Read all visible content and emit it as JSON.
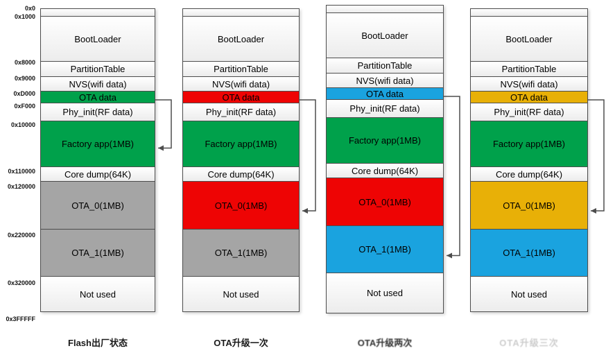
{
  "diagram": {
    "addresses": [
      "0x0",
      "0x1000",
      "0x8000",
      "0x9000",
      "0xD000",
      "0xF000",
      "0x10000",
      "0x110000",
      "0x120000",
      "0x220000",
      "0x320000",
      "0x3FFFFF"
    ],
    "segments": [
      {
        "label": ""
      },
      {
        "label": "BootLoader"
      },
      {
        "label": "PartitionTable"
      },
      {
        "label": "NVS(wifi data)"
      },
      {
        "label": "OTA data"
      },
      {
        "label": "Phy_init(RF data)"
      },
      {
        "label": "Factory app(1MB)"
      },
      {
        "label": "Core dump(64K)"
      },
      {
        "label": "OTA_0(1MB)"
      },
      {
        "label": "OTA_1(1MB)"
      },
      {
        "label": "Not used"
      }
    ],
    "columns": [
      {
        "caption": "Flash出厂状态",
        "caption_style": "normal",
        "boot_arrow_target": "Factory app(1MB)",
        "colors": {
          "OTA data": "green",
          "Factory app(1MB)": "green",
          "OTA_0(1MB)": "gray",
          "OTA_1(1MB)": "gray"
        }
      },
      {
        "caption": "OTA升级一次",
        "caption_style": "normal",
        "boot_arrow_target": "OTA_0(1MB)",
        "colors": {
          "OTA data": "red",
          "Factory app(1MB)": "green",
          "OTA_0(1MB)": "red",
          "OTA_1(1MB)": "gray"
        }
      },
      {
        "caption": "OTA升级两次",
        "caption_style": "smudged",
        "boot_arrow_target": "OTA_1(1MB)",
        "colors": {
          "OTA data": "blue",
          "Factory app(1MB)": "green",
          "OTA_0(1MB)": "red",
          "OTA_1(1MB)": "blue"
        }
      },
      {
        "caption": "OTA升级三次",
        "caption_style": "faint",
        "boot_arrow_target": "OTA_0(1MB)",
        "colors": {
          "OTA data": "gold",
          "Factory app(1MB)": "green",
          "OTA_0(1MB)": "gold",
          "OTA_1(1MB)": "blue"
        }
      }
    ],
    "palette": {
      "green": "#00A14B",
      "red": "#EE0404",
      "blue": "#1AA3DF",
      "gold": "#E8B007",
      "gray": "#A5A5A5",
      "plain": "#F2F2F2",
      "border": "#4D4D4D",
      "arrow": "#4D4D4D",
      "text": "#000000"
    }
  }
}
